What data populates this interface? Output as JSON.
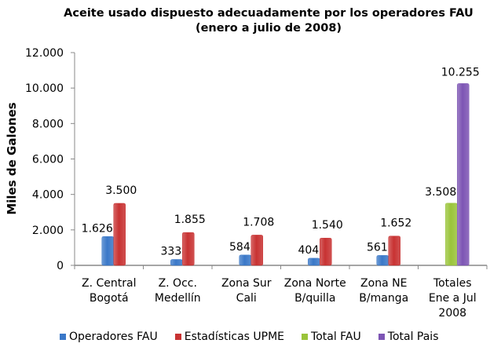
{
  "chart_data": {
    "type": "bar",
    "title": "Aceite usado dispuesto adecuadamente por los operadores FAU",
    "subtitle": "(enero a julio de 2008)",
    "xlabel": "",
    "ylabel": "Miles de Galones",
    "ylim": [
      0,
      12000
    ],
    "yticks": [
      "0",
      "2.000",
      "4.000",
      "6.000",
      "8.000",
      "10.000",
      "12.000"
    ],
    "ytick_values": [
      0,
      2000,
      4000,
      6000,
      8000,
      10000,
      12000
    ],
    "grid": false,
    "legend_position": "bottom",
    "categories": [
      [
        "Z. Central",
        "Bogotá"
      ],
      [
        "Z. Occ.",
        "Medellín"
      ],
      [
        "Zona Sur",
        "Cali"
      ],
      [
        "Zona Norte",
        "B/quilla"
      ],
      [
        "Zona NE",
        "B/manga"
      ],
      [
        "Totales",
        "Ene a Jul",
        "2008"
      ]
    ],
    "series": [
      {
        "name": "Operadores FAU",
        "color": "#3a78c8",
        "values": [
          1626,
          333,
          584,
          404,
          561,
          null
        ],
        "labels": [
          "1.626",
          "333",
          "584",
          "404",
          "561",
          null
        ]
      },
      {
        "name": "Estadísticas UPME",
        "color": "#c83232",
        "values": [
          3500,
          1855,
          1708,
          1540,
          1652,
          null
        ],
        "labels": [
          "3.500",
          "1.855",
          "1.708",
          "1.540",
          "1.652",
          null
        ]
      },
      {
        "name": "Total FAU",
        "color": "#9ac43a",
        "values": [
          null,
          null,
          null,
          null,
          null,
          3508
        ],
        "labels": [
          null,
          null,
          null,
          null,
          null,
          "3.508"
        ]
      },
      {
        "name": "Total Pais",
        "color": "#7d55b4",
        "values": [
          null,
          null,
          null,
          null,
          null,
          10255
        ],
        "labels": [
          null,
          null,
          null,
          null,
          null,
          "10.255"
        ]
      }
    ]
  }
}
